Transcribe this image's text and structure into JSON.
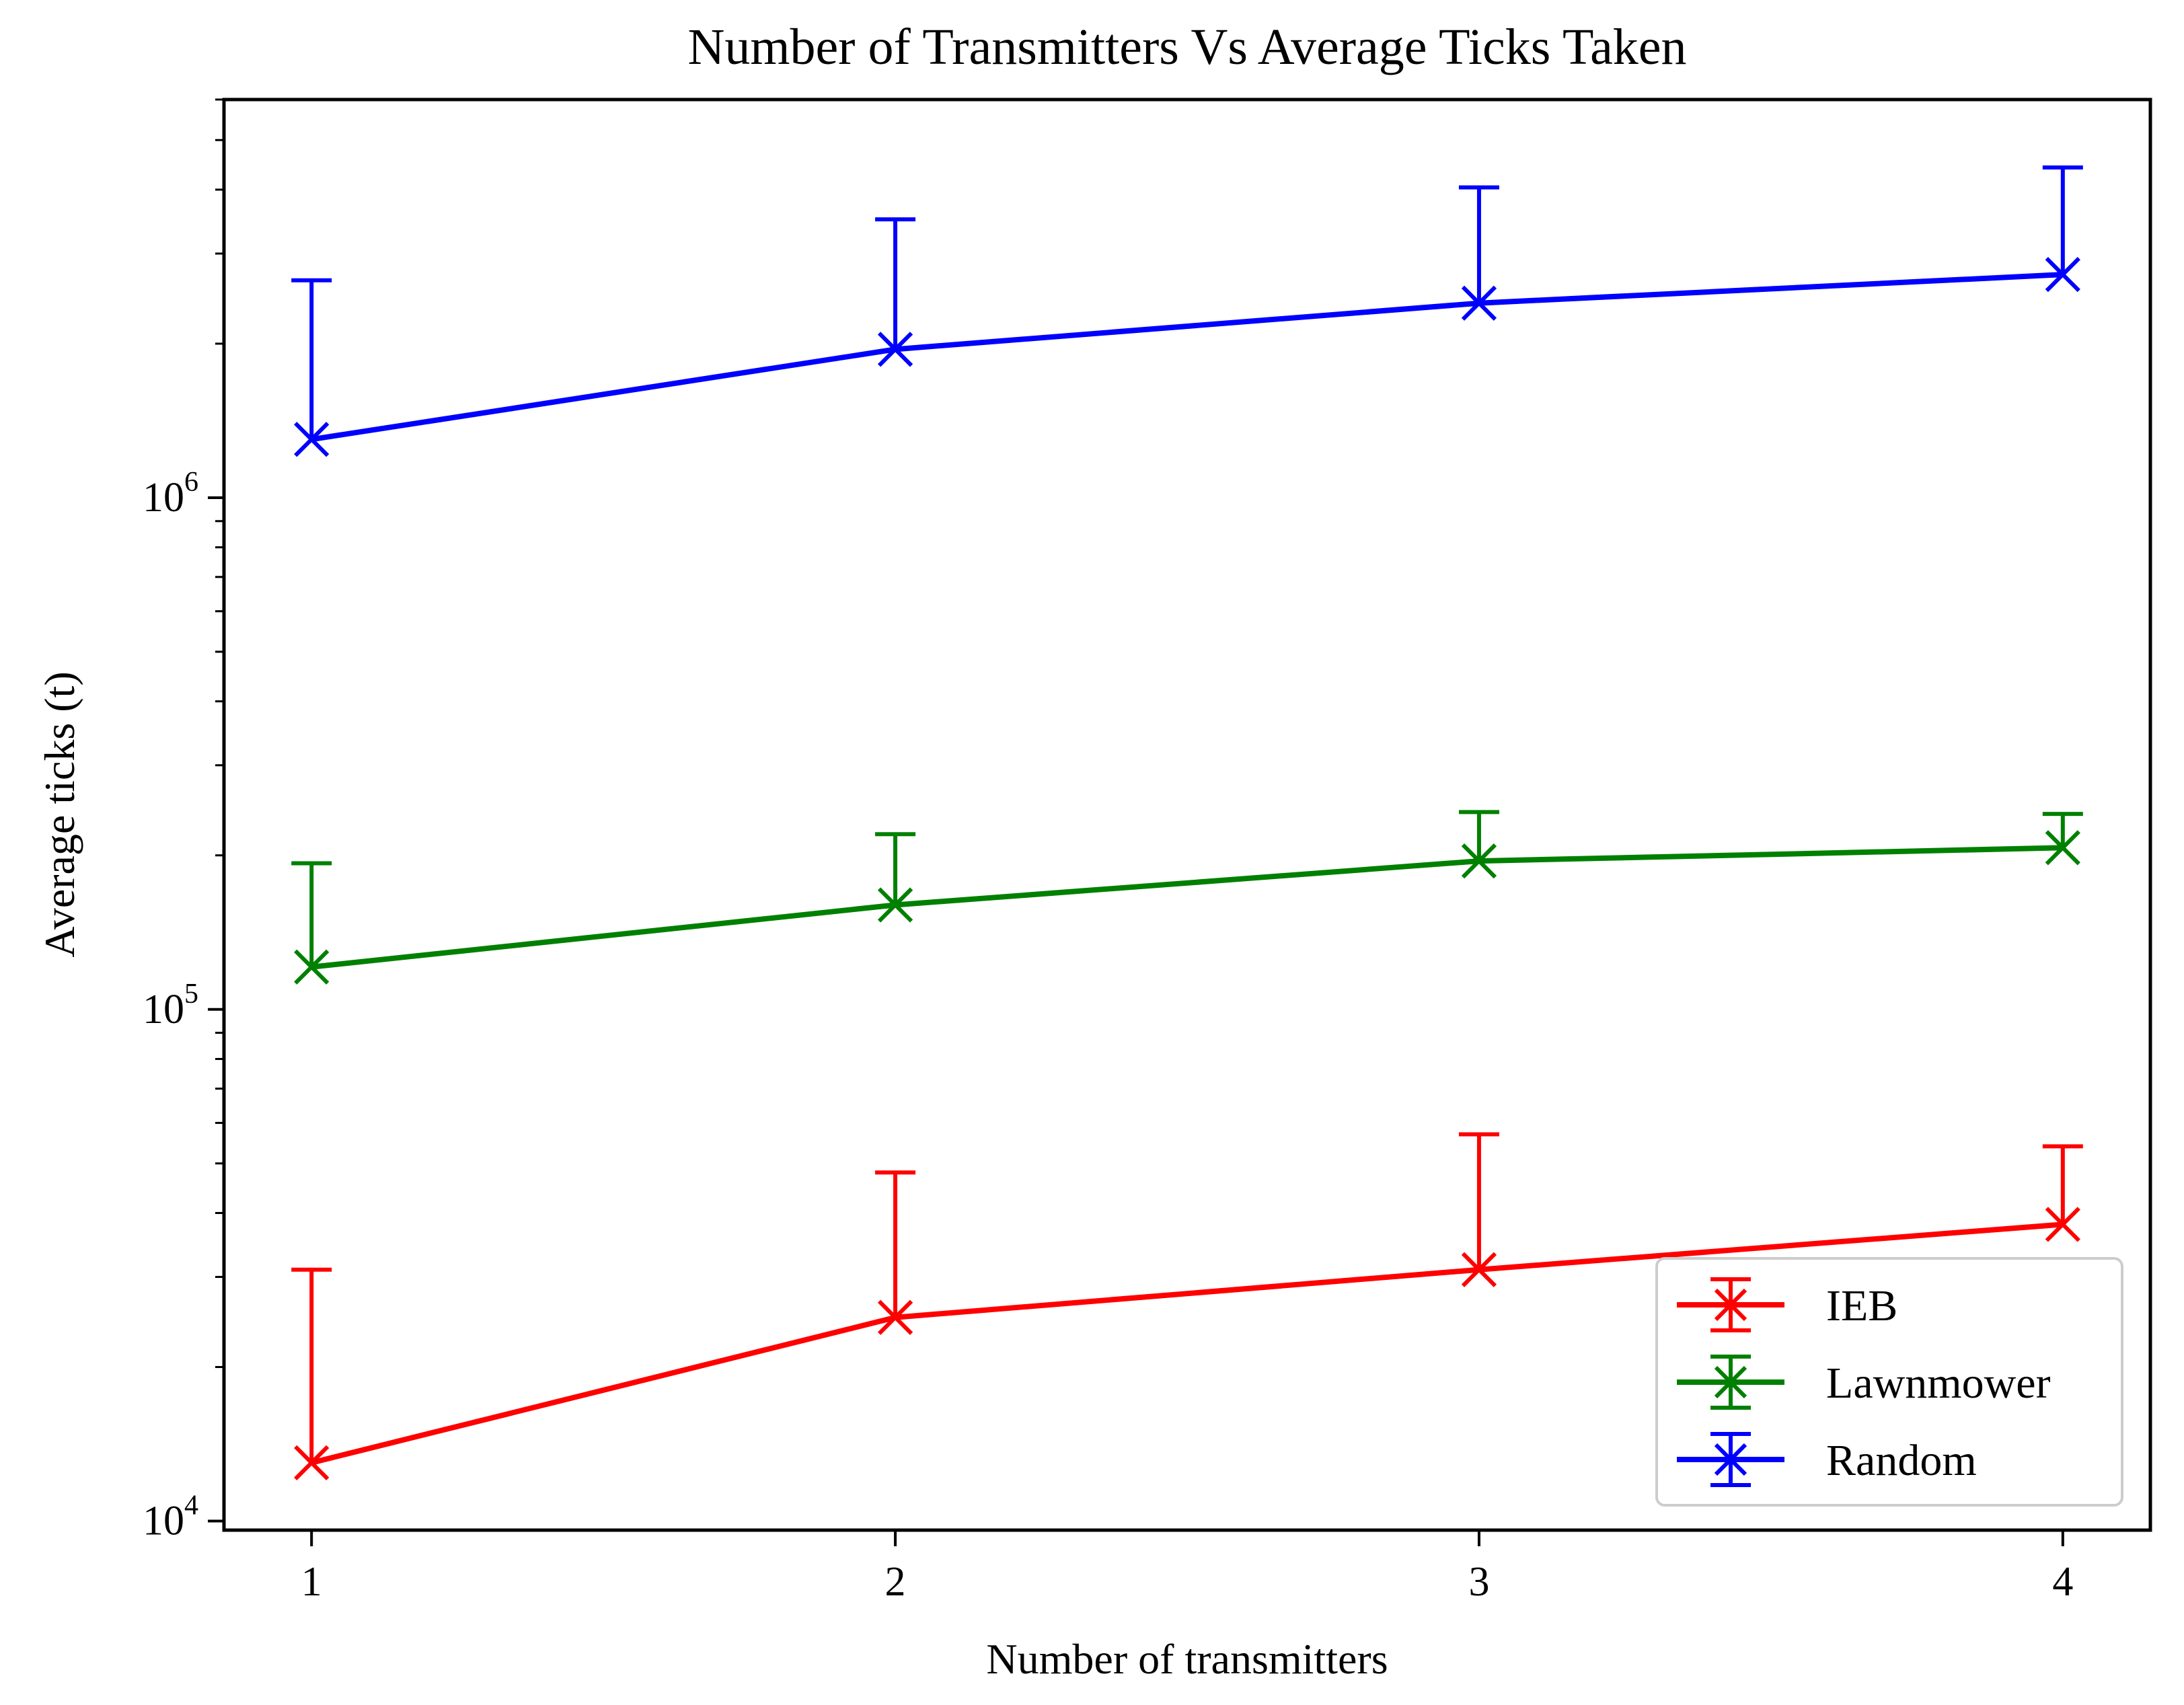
{
  "chart_data": {
    "type": "line",
    "title": "Number of Transmitters Vs Average Ticks Taken",
    "xlabel": "Number of transmitters",
    "ylabel": "Average ticks (t)",
    "yscale": "log",
    "xlim": [
      0.85,
      4.15
    ],
    "ylim": [
      9600,
      6000000
    ],
    "x": [
      1,
      2,
      3,
      4
    ],
    "xticks": [
      {
        "value": 1,
        "label": "1"
      },
      {
        "value": 2,
        "label": "2"
      },
      {
        "value": 3,
        "label": "3"
      },
      {
        "value": 4,
        "label": "4"
      }
    ],
    "yticks": [
      {
        "value": 10000,
        "base": "10",
        "exp": "4"
      },
      {
        "value": 100000,
        "base": "10",
        "exp": "5"
      },
      {
        "value": 1000000,
        "base": "10",
        "exp": "6"
      }
    ],
    "marker": "x",
    "error_bars": "upper only",
    "legend_position": "lower-right",
    "series": [
      {
        "name": "IEB",
        "color": "#ff0000",
        "values": [
          13000,
          25000,
          31000,
          38000
        ],
        "err_upper": [
          31000,
          48000,
          57000,
          54000
        ]
      },
      {
        "name": "Lawnmower",
        "color": "#008000",
        "values": [
          121000,
          160000,
          195000,
          207000
        ],
        "err_upper": [
          193000,
          220000,
          243000,
          241000
        ]
      },
      {
        "name": "Random",
        "color": "#0000ff",
        "values": [
          1300000,
          1950000,
          2400000,
          2730000
        ],
        "err_upper": [
          2660000,
          3500000,
          4040000,
          4420000
        ]
      }
    ]
  }
}
